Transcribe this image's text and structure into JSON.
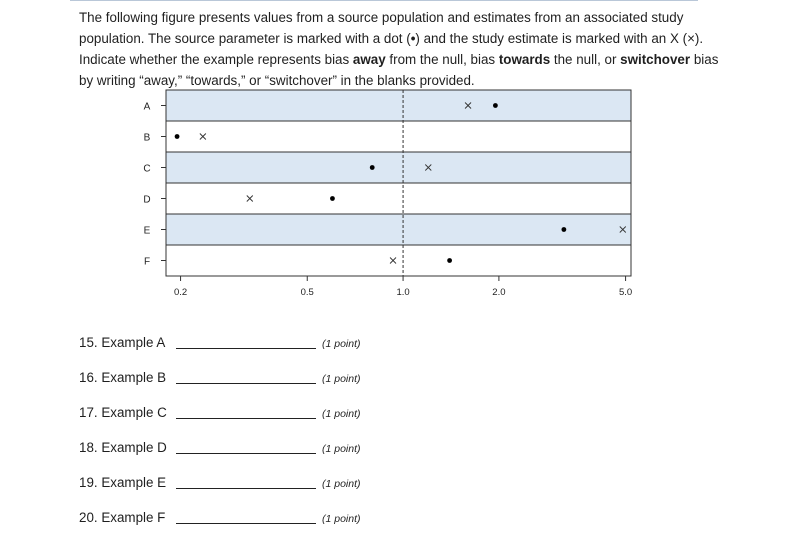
{
  "intro": {
    "t1": "The following figure presents values from a source population and estimates from an associated study population. The source parameter is marked with a dot (",
    "dot_symbol": "•",
    "t2": ") and the study estimate is marked with an X (",
    "x_symbol": "×",
    "t3": "). Indicate whether the example represents bias ",
    "b1": "away",
    "t4": " from the null, bias ",
    "b2": "towards",
    "t5": " the null, or ",
    "b3": "switchover",
    "t6": " bias by writing “away,” “towards,” or “switchover” in the blanks provided."
  },
  "chart_data": {
    "type": "scatter",
    "x_scale": "log",
    "null_value": 1.0,
    "xlim": [
      0.18,
      5.2
    ],
    "x_ticks": [
      "0.2",
      "0.5",
      "1.0",
      "2.0",
      "5.0"
    ],
    "x_tick_values": [
      0.2,
      0.5,
      1.0,
      2.0,
      5.0
    ],
    "rows": [
      {
        "label": "A",
        "dot": 1.95,
        "x": 1.6,
        "shaded": true
      },
      {
        "label": "B",
        "dot": 0.195,
        "x": 0.235,
        "shaded": false
      },
      {
        "label": "C",
        "dot": 0.8,
        "x": 1.2,
        "shaded": true
      },
      {
        "label": "D",
        "dot": 0.6,
        "x": 0.33,
        "shaded": false
      },
      {
        "label": "E",
        "dot": 3.2,
        "x": 4.9,
        "shaded": true
      },
      {
        "label": "F",
        "dot": 1.4,
        "x": 0.93,
        "shaded": false
      }
    ],
    "colors": {
      "shade": "#dbe7f3",
      "frame": "#333333",
      "null_line": "#333333"
    }
  },
  "questions": [
    {
      "label": "15. Example A",
      "points": "(1 point)"
    },
    {
      "label": "16. Example B",
      "points": "(1 point)"
    },
    {
      "label": "17. Example C",
      "points": "(1 point)"
    },
    {
      "label": "18. Example D",
      "points": "(1 point)"
    },
    {
      "label": "19. Example E",
      "points": "(1 point)"
    },
    {
      "label": "20. Example F",
      "points": "(1 point)"
    }
  ]
}
